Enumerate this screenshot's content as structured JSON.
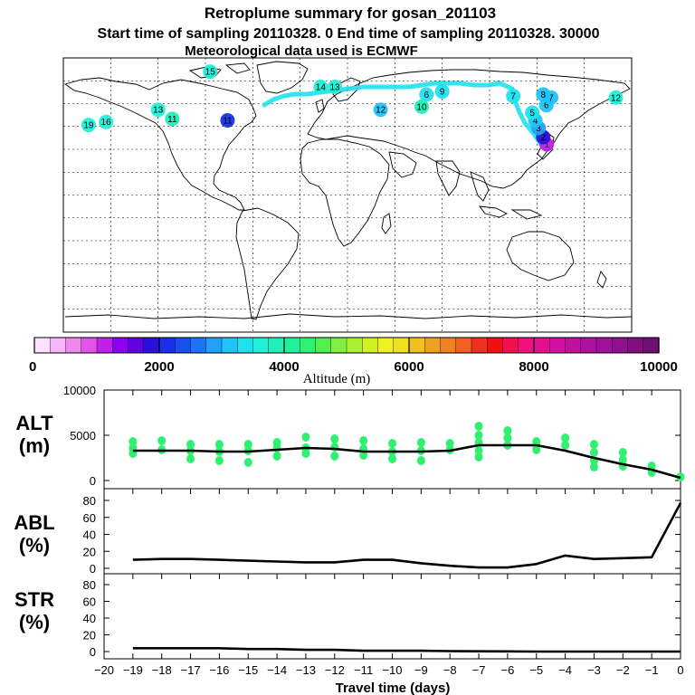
{
  "title": "Retroplume summary for gosan_201103",
  "subtitle": "Start time of sampling 20110328.    0     End time of sampling 20110328. 30000",
  "met_line": "Meteorological data used is ECMWF",
  "colorbar": {
    "label": "Altitude (m)",
    "ticks": [
      "0",
      "2000",
      "4000",
      "6000",
      "8000",
      "10000"
    ],
    "colors": [
      "#ffe0ff",
      "#f7b7f7",
      "#ee88ee",
      "#e055e8",
      "#c020e8",
      "#9000f0",
      "#6000e0",
      "#2a10d8",
      "#1a30e8",
      "#1850f0",
      "#1c74f4",
      "#20a0f8",
      "#20c4f8",
      "#20e0f0",
      "#20f0d8",
      "#20f0b8",
      "#20f098",
      "#30f070",
      "#50f050",
      "#80f040",
      "#a8f030",
      "#d0f020",
      "#f0f020",
      "#f0e020",
      "#f0c020",
      "#f0a020",
      "#f08020",
      "#f06020",
      "#f03020",
      "#f01010",
      "#f01050",
      "#f01080",
      "#e01090",
      "#d010a0",
      "#c010a0",
      "#b010a0",
      "#a010a0",
      "#901090",
      "#801080",
      "#701070"
    ]
  },
  "map": {
    "altitude_labels": [
      {
        "text": "1",
        "lon": 126.2,
        "lat": 33.3,
        "color": "#c020e8"
      },
      {
        "text": "2",
        "lon": 124,
        "lat": 38,
        "color": "#2a10d8"
      },
      {
        "text": "3",
        "lon": 121,
        "lat": 44,
        "color": "#20a0f8"
      },
      {
        "text": "4",
        "lon": 119,
        "lat": 49,
        "color": "#20c4f8"
      },
      {
        "text": "5",
        "lon": 117,
        "lat": 54,
        "color": "#20e0f0"
      },
      {
        "text": "6",
        "lon": 126,
        "lat": 59,
        "color": "#20c4f8"
      },
      {
        "text": "7",
        "lon": 129,
        "lat": 64,
        "color": "#20c4f8"
      },
      {
        "text": "6",
        "lon": 50,
        "lat": 66,
        "color": "#20e0f0"
      },
      {
        "text": "7",
        "lon": 105,
        "lat": 65,
        "color": "#20e0f0"
      },
      {
        "text": "8",
        "lon": 124,
        "lat": 66,
        "color": "#20c4f8"
      },
      {
        "text": "9",
        "lon": 60,
        "lat": 68,
        "color": "#20e0f0"
      },
      {
        "text": "10",
        "lon": 47,
        "lat": 58,
        "color": "#20f0b8"
      },
      {
        "text": "11",
        "lon": -111,
        "lat": 50,
        "color": "#20f0b8"
      },
      {
        "text": "12",
        "lon": 21,
        "lat": 56,
        "color": "#20c4f8"
      },
      {
        "text": "13",
        "lon": -120,
        "lat": 56,
        "color": "#20f0d8"
      },
      {
        "text": "14",
        "lon": -17,
        "lat": 71,
        "color": "#20f0d8"
      },
      {
        "text": "13",
        "lon": -8,
        "lat": 71,
        "color": "#20f0d8"
      },
      {
        "text": "15",
        "lon": -87,
        "lat": 81,
        "color": "#20f0d8"
      },
      {
        "text": "16",
        "lon": -153,
        "lat": 48,
        "color": "#20f0d8"
      },
      {
        "text": "19",
        "lon": -164,
        "lat": 46,
        "color": "#20f0d8"
      },
      {
        "text": "11",
        "lon": -76,
        "lat": 49,
        "color": "#1a30e8"
      },
      {
        "text": "12",
        "lon": 170,
        "lat": 64,
        "color": "#20f0d8"
      }
    ]
  },
  "x_axis": {
    "label": "Travel time (days)",
    "ticks": [
      "−20",
      "−19",
      "−18",
      "−17",
      "−16",
      "−15",
      "−14",
      "−13",
      "−12",
      "−11",
      "−10",
      "−9",
      "−8",
      "−7",
      "−6",
      "−5",
      "−4",
      "−3",
      "−2",
      "−1",
      "0"
    ]
  },
  "chart_data": [
    {
      "type": "line",
      "panel": "ALT",
      "panel_label": "ALT",
      "panel_unit": "(m)",
      "x": [
        -19,
        -18,
        -17,
        -16,
        -15,
        -14,
        -13,
        -12,
        -11,
        -10,
        -9,
        -8,
        -7,
        -6,
        -5,
        -4,
        -3,
        -2,
        -1,
        0
      ],
      "values": [
        3300,
        3300,
        3300,
        3200,
        3200,
        3400,
        3600,
        3500,
        3200,
        3200,
        3200,
        3300,
        3900,
        3900,
        3900,
        3300,
        2500,
        1800,
        1200,
        300
      ],
      "ylim": [
        0,
        10000
      ],
      "yticks": [
        "0",
        "5000",
        "10000"
      ],
      "scatter": [
        {
          "x": -19,
          "y": 4300
        },
        {
          "x": -19,
          "y": 3600
        },
        {
          "x": -19,
          "y": 3000
        },
        {
          "x": -18,
          "y": 4400
        },
        {
          "x": -18,
          "y": 3400
        },
        {
          "x": -17,
          "y": 4000
        },
        {
          "x": -17,
          "y": 3300
        },
        {
          "x": -17,
          "y": 2400
        },
        {
          "x": -16,
          "y": 4000
        },
        {
          "x": -16,
          "y": 3200
        },
        {
          "x": -16,
          "y": 2200
        },
        {
          "x": -15,
          "y": 4000
        },
        {
          "x": -15,
          "y": 3300
        },
        {
          "x": -15,
          "y": 2000
        },
        {
          "x": -14,
          "y": 4200
        },
        {
          "x": -14,
          "y": 3600
        },
        {
          "x": -14,
          "y": 2700
        },
        {
          "x": -13,
          "y": 4800
        },
        {
          "x": -13,
          "y": 3600
        },
        {
          "x": -13,
          "y": 3000
        },
        {
          "x": -12,
          "y": 4600
        },
        {
          "x": -12,
          "y": 3700
        },
        {
          "x": -12,
          "y": 2700
        },
        {
          "x": -11,
          "y": 4400
        },
        {
          "x": -11,
          "y": 3500
        },
        {
          "x": -11,
          "y": 2800
        },
        {
          "x": -10,
          "y": 4100
        },
        {
          "x": -10,
          "y": 3200
        },
        {
          "x": -10,
          "y": 2400
        },
        {
          "x": -9,
          "y": 4200
        },
        {
          "x": -9,
          "y": 3300
        },
        {
          "x": -9,
          "y": 2200
        },
        {
          "x": -8,
          "y": 4100
        },
        {
          "x": -8,
          "y": 3400
        },
        {
          "x": -7,
          "y": 6000
        },
        {
          "x": -7,
          "y": 5000
        },
        {
          "x": -7,
          "y": 4200
        },
        {
          "x": -7,
          "y": 3300
        },
        {
          "x": -7,
          "y": 2600
        },
        {
          "x": -6,
          "y": 5500
        },
        {
          "x": -6,
          "y": 4700
        },
        {
          "x": -6,
          "y": 3900
        },
        {
          "x": -5,
          "y": 4300
        },
        {
          "x": -5,
          "y": 3900
        },
        {
          "x": -5,
          "y": 3400
        },
        {
          "x": -4,
          "y": 4700
        },
        {
          "x": -4,
          "y": 3900
        },
        {
          "x": -3,
          "y": 4000
        },
        {
          "x": -3,
          "y": 3100
        },
        {
          "x": -3,
          "y": 2200
        },
        {
          "x": -3,
          "y": 1500
        },
        {
          "x": -2,
          "y": 3100
        },
        {
          "x": -2,
          "y": 2300
        },
        {
          "x": -2,
          "y": 1600
        },
        {
          "x": -1,
          "y": 1600
        },
        {
          "x": -1,
          "y": 900
        },
        {
          "x": 0,
          "y": 400
        }
      ]
    },
    {
      "type": "line",
      "panel": "ABL",
      "panel_label": "ABL",
      "panel_unit": "(%)",
      "x": [
        -19,
        -18,
        -17,
        -16,
        -15,
        -14,
        -13,
        -12,
        -11,
        -10,
        -9,
        -8,
        -7,
        -6,
        -5,
        -4,
        -3,
        -2,
        -1,
        0
      ],
      "values": [
        10,
        11,
        11,
        10,
        9,
        8,
        7,
        7,
        10,
        10,
        6,
        3,
        1,
        1,
        5,
        15,
        11,
        12,
        13,
        77
      ],
      "ylim": [
        0,
        90
      ],
      "yticks": [
        "0",
        "20",
        "40",
        "60",
        "80"
      ]
    },
    {
      "type": "line",
      "panel": "STR",
      "panel_label": "STR",
      "panel_unit": "(%)",
      "x": [
        -19,
        -18,
        -17,
        -16,
        -15,
        -14,
        -13,
        -12,
        -11,
        -10,
        -9,
        -8,
        -7,
        -6,
        -5,
        -4,
        -3,
        -2,
        -1,
        0
      ],
      "values": [
        4,
        4,
        4,
        4,
        3,
        3,
        2,
        2,
        1,
        1,
        1,
        0.5,
        0.3,
        0.2,
        0,
        0,
        0,
        0,
        0,
        0
      ],
      "ylim": [
        0,
        90
      ],
      "yticks": [
        "0",
        "20",
        "40",
        "60",
        "80"
      ]
    }
  ]
}
